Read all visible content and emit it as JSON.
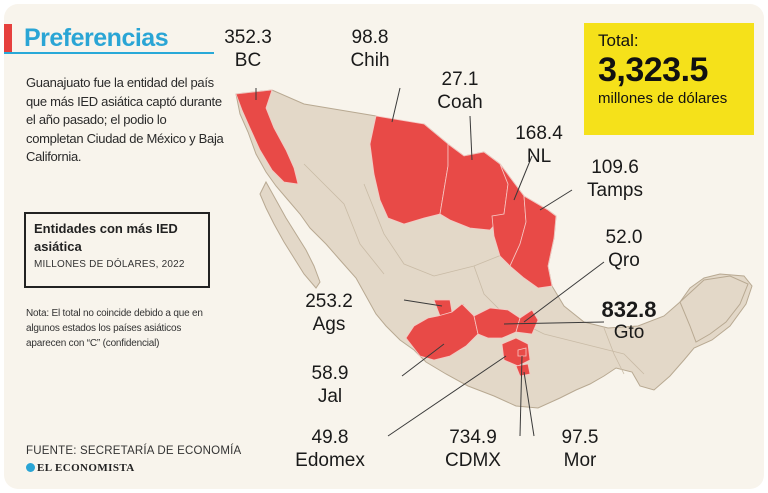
{
  "header": {
    "title": "Preferencias",
    "intro": "Guanajuato fue la entidad del país que más IED asiática captó durante el año pasado; el podio lo completan Ciudad de México y Baja California."
  },
  "legend": {
    "title": "Entidades con más IED asiática",
    "unit": "MILLONES DE DÓLARES, 2022"
  },
  "note": "Nota: El total no coincide debido a que en algunos estados los países asiáticos aparecen con “C” (confidencial)",
  "total": {
    "label": "Total:",
    "value": "3,323.5",
    "unit": "millones de dólares"
  },
  "source": "FUENTE: SECRETARÍA DE ECONOMÍA",
  "brand": "EL ECONOMISTA",
  "states": [
    {
      "abbr": "BC",
      "value": "352.3"
    },
    {
      "abbr": "Chih",
      "value": "98.8"
    },
    {
      "abbr": "Coah",
      "value": "27.1"
    },
    {
      "abbr": "NL",
      "value": "168.4"
    },
    {
      "abbr": "Tamps",
      "value": "109.6"
    },
    {
      "abbr": "Qro",
      "value": "52.0"
    },
    {
      "abbr": "Gto",
      "value": "832.8"
    },
    {
      "abbr": "Ags",
      "value": "253.2"
    },
    {
      "abbr": "Jal",
      "value": "58.9"
    },
    {
      "abbr": "Edomex",
      "value": "49.8"
    },
    {
      "abbr": "CDMX",
      "value": "734.9"
    },
    {
      "abbr": "Mor",
      "value": "97.5"
    }
  ],
  "colors": {
    "highlight": "#e84a47",
    "land": "#e3d8c8",
    "border": "#b8a992",
    "accent": "#2aa5d5",
    "total_bg": "#f5e11a"
  }
}
